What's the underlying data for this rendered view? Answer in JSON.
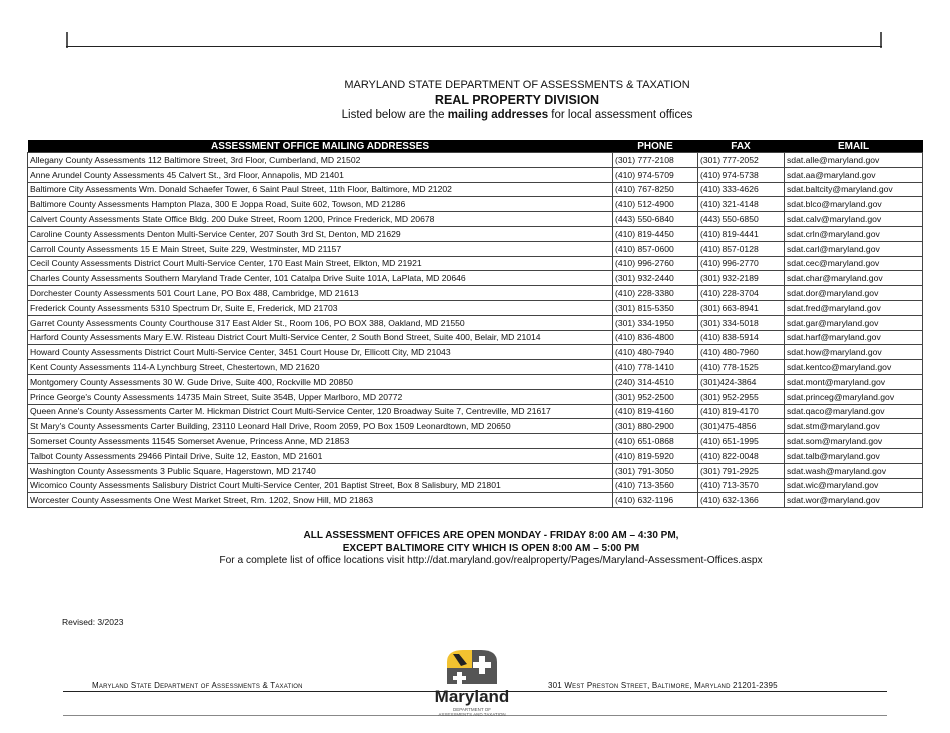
{
  "header": {
    "agency": "MARYLAND STATE DEPARTMENT OF ASSESSMENTS & TAXATION",
    "division": "REAL PROPERTY DIVISION",
    "intro_pre": "Listed below are the ",
    "intro_bold": "mailing addresses",
    "intro_post": " for local assessment offices"
  },
  "table": {
    "columns": [
      "ASSESSMENT OFFICE MAILING ADDRESSES",
      "PHONE",
      "FAX",
      "EMAIL"
    ],
    "rows": [
      [
        "Allegany County Assessments 112 Baltimore Street, 3rd Floor, Cumberland, MD 21502",
        "(301) 777-2108",
        "(301) 777-2052",
        "sdat.alle@maryland.gov"
      ],
      [
        "Anne Arundel County Assessments 45 Calvert St., 3rd Floor, Annapolis, MD 21401",
        "(410) 974-5709",
        "(410) 974-5738",
        "sdat.aa@maryland.gov"
      ],
      [
        "Baltimore City Assessments Wm. Donald Schaefer Tower, 6 Saint Paul Street, 11th Floor, Baltimore, MD 21202",
        "(410) 767-8250",
        "(410) 333-4626",
        "sdat.baltcity@maryland.gov"
      ],
      [
        "Baltimore County Assessments Hampton Plaza, 300 E Joppa Road, Suite 602, Towson, MD 21286",
        "(410) 512-4900",
        "(410) 321-4148",
        "sdat.blco@maryland.gov"
      ],
      [
        "Calvert County Assessments State Office Bldg. 200 Duke Street, Room 1200, Prince Frederick, MD 20678",
        "(443) 550-6840",
        "(443) 550-6850",
        "sdat.calv@maryland.gov"
      ],
      [
        "Caroline County Assessments Denton Multi-Service Center,  207 South 3rd St, Denton, MD 21629",
        "(410) 819-4450",
        "(410) 819-4441",
        "sdat.crln@maryland.gov"
      ],
      [
        "Carroll County Assessments  15 E Main Street, Suite 229, Westminster, MD 21157",
        "(410) 857-0600",
        "(410) 857-0128",
        "sdat.carl@maryland.gov"
      ],
      [
        "Cecil County Assessments District Court Multi-Service Center, 170 East Main Street, Elkton, MD 21921",
        "(410) 996-2760",
        "(410) 996-2770",
        "sdat.cec@maryland.gov"
      ],
      [
        "Charles County Assessments Southern Maryland Trade Center, 101 Catalpa Drive Suite 101A, LaPlata, MD 20646",
        "(301) 932-2440",
        "(301) 932-2189",
        "sdat.char@maryland.gov"
      ],
      [
        "Dorchester County Assessments 501 Court Lane, PO Box 488, Cambridge, MD 21613",
        "(410) 228-3380",
        "(410) 228-3704",
        "sdat.dor@maryland.gov"
      ],
      [
        "Frederick County Assessments 5310 Spectrum Dr, Suite E, Frederick, MD 21703",
        "(301) 815-5350",
        "(301) 663-8941",
        "sdat.fred@maryland.gov"
      ],
      [
        "Garret County Assessments County Courthouse 317 East Alder St., Room 106, PO BOX 388, Oakland, MD 21550",
        "(301) 334-1950",
        "(301) 334-5018",
        "sdat.gar@maryland.gov"
      ],
      [
        "Harford County Assessments Mary E.W. Risteau District Court Multi-Service Center, 2 South Bond Street, Suite 400, Belair, MD 21014",
        "(410) 836-4800",
        "(410) 838-5914",
        "sdat.harf@maryland.gov"
      ],
      [
        "Howard County Assessments District Court Multi-Service Center, 3451 Court House Dr, Ellicott City, MD 21043",
        "(410) 480-7940",
        "(410) 480-7960",
        "sdat.how@maryland.gov"
      ],
      [
        "Kent County Assessments 114-A Lynchburg Street, Chestertown, MD 21620",
        "(410) 778-1410",
        "(410) 778-1525",
        "sdat.kentco@maryland.gov"
      ],
      [
        "Montgomery County Assessments 30 W. Gude Drive, Suite 400,  Rockville MD 20850",
        "(240) 314-4510",
        "(301)424-3864",
        "sdat.mont@maryland.gov"
      ],
      [
        "Prince George's County Assessments 14735 Main Street, Suite 354B, Upper Marlboro, MD 20772",
        "(301) 952-2500",
        "(301) 952-2955",
        "sdat.princeg@maryland.gov"
      ],
      [
        "Queen Anne's County Assessments Carter M. Hickman District Court Multi-Service Center, 120 Broadway Suite 7, Centreville, MD 21617",
        "(410) 819-4160",
        "(410) 819-4170",
        "sdat.qaco@maryland.gov"
      ],
      [
        "St Mary's County Assessments Carter Building, 23110 Leonard Hall Drive, Room 2059, PO Box 1509 Leonardtown, MD 20650",
        "(301) 880-2900",
        "(301)475-4856",
        "sdat.stm@maryland.gov"
      ],
      [
        "Somerset County Assessments 11545 Somerset Avenue, Princess Anne, MD 21853",
        "(410) 651-0868",
        "(410) 651-1995",
        "sdat.som@maryland.gov"
      ],
      [
        "Talbot County Assessments 29466 Pintail Drive, Suite 12, Easton, MD 21601",
        "(410) 819-5920",
        "(410) 822-0048",
        "sdat.talb@maryland.gov"
      ],
      [
        "Washington County Assessments 3 Public Square, Hagerstown, MD 21740",
        "(301) 791-3050",
        "(301) 791-2925",
        "sdat.wash@maryland.gov"
      ],
      [
        "Wicomico County Assessments Salisbury District Court Multi-Service Center, 201 Baptist Street, Box 8 Salisbury, MD 21801",
        "(410) 713-3560",
        "(410) 713-3570",
        "sdat.wic@maryland.gov"
      ],
      [
        "Worcester County Assessments One West Market Street, Rm. 1202, Snow Hill, MD 21863",
        "(410) 632-1196",
        "(410) 632-1366",
        "sdat.wor@maryland.gov"
      ]
    ]
  },
  "notes": {
    "hours_1": "ALL ASSESSMENT OFFICES ARE OPEN MONDAY - FRIDAY 8:00 AM – 4:30 PM,",
    "hours_2": "EXCEPT BALTIMORE CITY WHICH IS OPEN 8:00 AM – 5:00 PM",
    "link_text": "For a complete list of office locations visit http://dat.maryland.gov/realproperty/Pages/Maryland-Assessment-Offices.aspx"
  },
  "revised": "Revised: 3/2023",
  "footer": {
    "left": "Maryland State Department of Assessments & Taxation",
    "right": "301 West Preston Street, Baltimore, Maryland  21201-2395",
    "logo_word": "Maryland",
    "logo_sub_1": "DEPARTMENT OF",
    "logo_sub_2": "ASSESSMENTS AND TAXATION"
  },
  "colors": {
    "header_bg": "#000000",
    "flag_yellow": "#f2c230",
    "flag_black": "#222222"
  }
}
